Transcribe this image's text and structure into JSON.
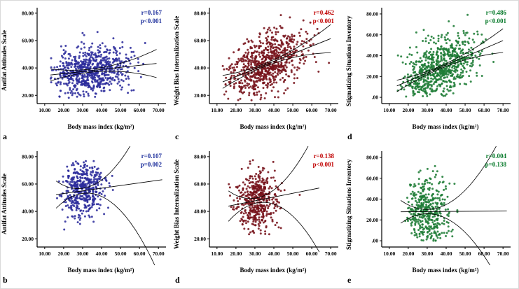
{
  "figure": {
    "background": "#ffffff"
  },
  "chart_data": [
    {
      "type": "scatter",
      "letter": "a",
      "xlabel": "Body mass index (kg/m²)",
      "ylabel": "Antifat Attitudes Scale",
      "annotation_r": "r=0.167",
      "annotation_p": "p<0.001",
      "annotation_color": "#1b2d9b",
      "dot_color": "#2c2c9c",
      "x_tick_labels": [
        "10.00",
        "20.00",
        "30.00",
        "40.00",
        "50.00",
        "60.00",
        "70.00"
      ],
      "y_tick_labels": [
        "20.00",
        "40.00",
        "60.00",
        "80.00"
      ],
      "xlim": [
        6,
        74
      ],
      "ylim": [
        14,
        84
      ],
      "scatter": {
        "n": 720,
        "seed": 11,
        "mean_x": 34,
        "sd_x": 10,
        "mean_y": 38,
        "sd_y": 9,
        "r": 0.167,
        "clip_x": [
          13,
          69
        ],
        "clip_y": [
          18,
          68
        ]
      },
      "fit": {
        "ci0": 1.1,
        "ci1": 3.0
      },
      "legend": "none",
      "grid": false
    },
    {
      "type": "scatter",
      "letter": "c",
      "xlabel": "Body mass index (kg/m²)",
      "ylabel": "Weight Bias Internalization Scale",
      "annotation_r": "r=0.462",
      "annotation_p": "p<0.001",
      "annotation_color": "#c00000",
      "dot_color": "#76121a",
      "x_tick_labels": [
        "10.00",
        "20.00",
        "30.00",
        "40.00",
        "50.00",
        "60.00",
        "70.00"
      ],
      "y_tick_labels": [
        "20.00",
        "40.00",
        "60.00",
        "80.00"
      ],
      "xlim": [
        6,
        74
      ],
      "ylim": [
        14,
        84
      ],
      "scatter": {
        "n": 760,
        "seed": 23,
        "mean_x": 35,
        "sd_x": 10,
        "mean_y": 42,
        "sd_y": 12,
        "r": 0.462,
        "clip_x": [
          13,
          70
        ],
        "clip_y": [
          15,
          80
        ]
      },
      "fit": {
        "ci0": 1.1,
        "ci1": 3.0
      },
      "legend": "none",
      "grid": false
    },
    {
      "type": "scatter",
      "letter": "d",
      "xlabel": "Body mass index (kg/m²)",
      "ylabel": "Stigmatizing Situations Inventory",
      "annotation_r": "r=0.486",
      "annotation_p": "p<0.001",
      "annotation_color": "#0a7b2d",
      "dot_color": "#1e7c35",
      "x_tick_labels": [
        "10.00",
        "20.00",
        "30.00",
        "40.00",
        "50.00",
        "60.00",
        "70.00"
      ],
      "y_tick_labels": [
        ".00",
        "20.00",
        "40.00",
        "60.00",
        "80.00"
      ],
      "xlim": [
        6,
        74
      ],
      "ylim": [
        -6,
        86
      ],
      "scatter": {
        "n": 760,
        "seed": 37,
        "mean_x": 36,
        "sd_x": 10,
        "mean_y": 28,
        "sd_y": 16,
        "r": 0.486,
        "clip_x": [
          14,
          70
        ],
        "clip_y": [
          0,
          80
        ]
      },
      "fit": {
        "ci0": 1.3,
        "ci1": 3.5
      },
      "legend": "none",
      "grid": false
    },
    {
      "type": "scatter",
      "letter": "b",
      "xlabel": "Body mass index (kg/m²)",
      "ylabel": "Antifat Attitudes Scale",
      "annotation_r": "r=0.107",
      "annotation_p": "p=0.002",
      "annotation_color": "#1b2d9b",
      "dot_color": "#2c2c9c",
      "x_tick_labels": [
        "10.00",
        "20.00",
        "30.00",
        "40.00",
        "50.00",
        "60.00",
        "70.00"
      ],
      "y_tick_labels": [
        "20.00",
        "40.00",
        "60.00",
        "80.00"
      ],
      "xlim": [
        6,
        74
      ],
      "ylim": [
        14,
        84
      ],
      "scatter": {
        "n": 460,
        "seed": 51,
        "mean_x": 30,
        "sd_x": 5.5,
        "mean_y": 55,
        "sd_y": 10,
        "r": 0.107,
        "clip_x": [
          16,
          72
        ],
        "clip_y": [
          22,
          78
        ]
      },
      "fit": {
        "ci0": 1.8,
        "ci1": 5.0
      },
      "legend": "none",
      "grid": false
    },
    {
      "type": "scatter",
      "letter": "d",
      "xlabel": "Body mass index (kg/m²)",
      "ylabel": "Weight Bias Internalization Scale",
      "annotation_r": "r=0.138",
      "annotation_p": "p<0.001",
      "annotation_color": "#c00000",
      "dot_color": "#76121a",
      "x_tick_labels": [
        "10.00",
        "20.00",
        "30.00",
        "40.00",
        "50.00",
        "60.00",
        "70.00"
      ],
      "y_tick_labels": [
        "20.00",
        "40.00",
        "60.00",
        "80.00"
      ],
      "xlim": [
        6,
        74
      ],
      "ylim": [
        14,
        84
      ],
      "scatter": {
        "n": 460,
        "seed": 67,
        "mean_x": 31,
        "sd_x": 5.5,
        "mean_y": 48,
        "sd_y": 11,
        "r": 0.138,
        "clip_x": [
          16,
          64
        ],
        "clip_y": [
          22,
          78
        ]
      },
      "fit": {
        "ci0": 1.8,
        "ci1": 5.0
      },
      "legend": "none",
      "grid": false
    },
    {
      "type": "scatter",
      "letter": "e",
      "xlabel": "Body mass index (kg/m²)",
      "ylabel": "Stigmatizing Situations Inventory",
      "annotation_r": "r=0.004",
      "annotation_p": "p=0.138",
      "annotation_color": "#0a7b2d",
      "dot_color": "#1e7c35",
      "x_tick_labels": [
        "10.00",
        "20.00",
        "30.00",
        "40.00",
        "50.00",
        "60.00",
        "70.00"
      ],
      "y_tick_labels": [
        ".00",
        "20.00",
        "40.00",
        "60.00",
        "80.00"
      ],
      "xlim": [
        6,
        74
      ],
      "ylim": [
        -6,
        86
      ],
      "scatter": {
        "n": 440,
        "seed": 83,
        "mean_x": 30,
        "sd_x": 5.5,
        "mean_y": 28,
        "sd_y": 18,
        "r": 0.004,
        "clip_x": [
          16,
          72
        ],
        "clip_y": [
          0,
          80
        ]
      },
      "fit": {
        "ci0": 2.0,
        "ci1": 5.5
      },
      "legend": "none",
      "grid": false
    }
  ]
}
